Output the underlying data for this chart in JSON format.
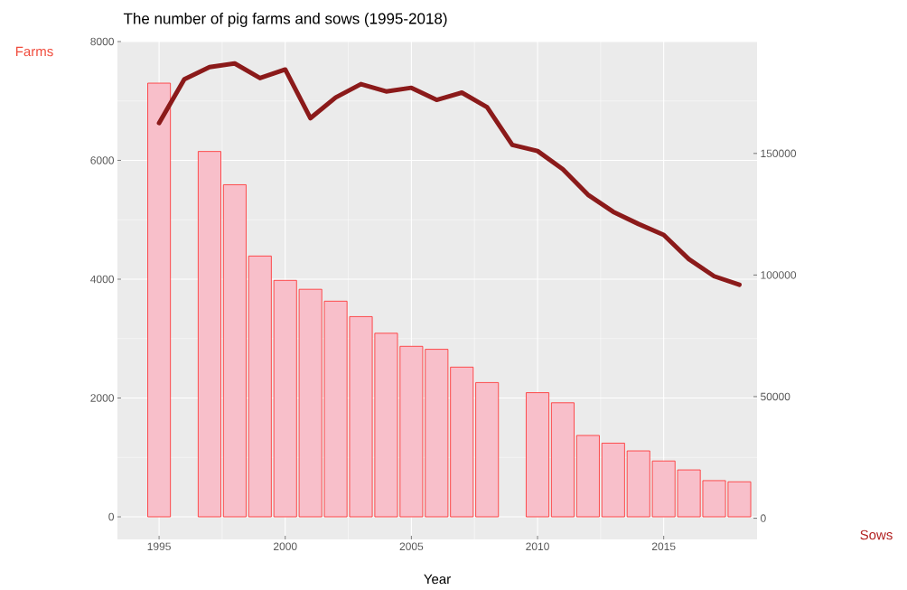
{
  "chart_data": {
    "type": "bar",
    "title": "The number of pig farms and sows (1995-2018)",
    "xlabel": "Year",
    "ylabel": "Farms",
    "y2label": "Sows",
    "x": [
      1995,
      1996,
      1997,
      1998,
      1999,
      2000,
      2001,
      2002,
      2003,
      2004,
      2005,
      2006,
      2007,
      2008,
      2009,
      2010,
      2011,
      2012,
      2013,
      2014,
      2015,
      2016,
      2017,
      2018
    ],
    "series": [
      {
        "color": "#f8bfca",
        "values": [
          7300,
          null,
          6150,
          5590,
          4390,
          3980,
          3830,
          3630,
          3370,
          3090,
          2870,
          2820,
          2520,
          2260,
          null,
          2090,
          1920,
          1370,
          1240,
          1110,
          940,
          790,
          610,
          590
        ]
      },
      {
        "type": "line",
        "axis": "y2",
        "color": "#8b1a1a",
        "values": [
          162500,
          180500,
          185500,
          187000,
          181000,
          184500,
          164500,
          173000,
          178500,
          175500,
          177000,
          172000,
          175000,
          169000,
          153500,
          151000,
          143500,
          133000,
          126000,
          121000,
          116500,
          106500,
          99500,
          96000
        ]
      }
    ],
    "xlim": [
      1993.35,
      2018.7
    ],
    "xticks": [
      1995,
      2000,
      2005,
      2010,
      2015
    ],
    "ylim": [
      -380,
      8000
    ],
    "yticks": [
      0,
      2000,
      4000,
      6000,
      8000
    ],
    "y2lim": [
      -8700,
      196000
    ],
    "y2ticks": [
      0,
      50000,
      100000,
      150000
    ],
    "grid": true
  }
}
